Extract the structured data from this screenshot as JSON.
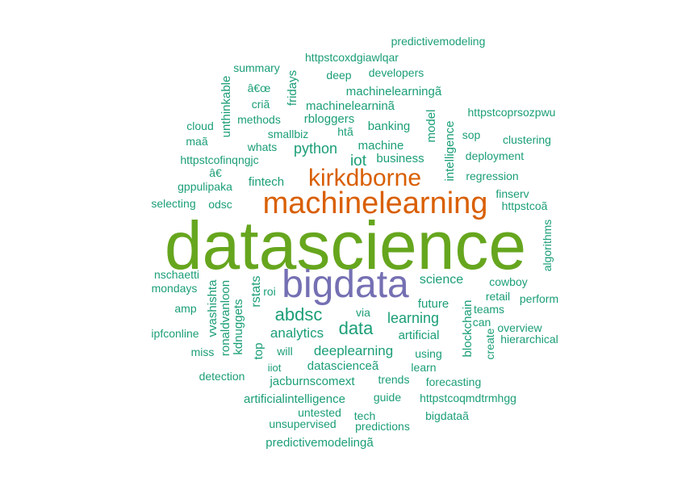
{
  "colors": {
    "teal": "#1b9e77",
    "orange": "#d95f02",
    "purple": "#7570b3",
    "green": "#66a61e"
  },
  "words": [
    {
      "text": "datascience",
      "color": "green"
    },
    {
      "text": "bigdata",
      "color": "purple"
    },
    {
      "text": "machinelearning",
      "color": "orange"
    },
    {
      "text": "kirkdborne",
      "color": "orange"
    },
    {
      "text": "data",
      "color": "teal"
    },
    {
      "text": "abdsc",
      "color": "teal"
    },
    {
      "text": "iot",
      "color": "teal"
    },
    {
      "text": "python",
      "color": "teal"
    },
    {
      "text": "learning",
      "color": "teal"
    },
    {
      "text": "analytics",
      "color": "teal"
    },
    {
      "text": "deeplearning",
      "color": "teal"
    },
    {
      "text": "science",
      "color": "teal"
    },
    {
      "text": "future",
      "color": "teal"
    },
    {
      "text": "business",
      "color": "teal"
    },
    {
      "text": "fintech",
      "color": "teal"
    },
    {
      "text": "machine",
      "color": "teal"
    },
    {
      "text": "banking",
      "color": "teal"
    },
    {
      "text": "datascienceã",
      "color": "teal"
    },
    {
      "text": "rbloggers",
      "color": "teal"
    },
    {
      "text": "artificial",
      "color": "teal"
    },
    {
      "text": "artificialintelligence",
      "color": "teal"
    },
    {
      "text": "machinelearninã",
      "color": "teal"
    },
    {
      "text": "machinelearningã",
      "color": "teal"
    },
    {
      "text": "jacburnscomext",
      "color": "teal"
    },
    {
      "text": "predictivemodelingã",
      "color": "teal"
    },
    {
      "text": "httpstcoqmdtrmhgg",
      "color": "teal"
    },
    {
      "text": "httpstcofinqngjc",
      "color": "teal"
    },
    {
      "text": "httpstcoxdgiawlqar",
      "color": "teal"
    },
    {
      "text": "deployment",
      "color": "teal"
    },
    {
      "text": "regression",
      "color": "teal"
    },
    {
      "text": "forecasting",
      "color": "teal"
    },
    {
      "text": "trends",
      "color": "teal"
    },
    {
      "text": "using",
      "color": "teal"
    },
    {
      "text": "learn",
      "color": "teal"
    },
    {
      "text": "will",
      "color": "teal"
    },
    {
      "text": "via",
      "color": "teal"
    },
    {
      "text": "smallbiz",
      "color": "teal"
    },
    {
      "text": "whats",
      "color": "teal"
    },
    {
      "text": "methods",
      "color": "teal"
    },
    {
      "text": "developers",
      "color": "teal"
    },
    {
      "text": "deep",
      "color": "teal"
    },
    {
      "text": "htã",
      "color": "teal"
    },
    {
      "text": "gppulipaka",
      "color": "teal"
    },
    {
      "text": "odsc",
      "color": "teal"
    },
    {
      "text": "selecting",
      "color": "teal"
    },
    {
      "text": "cowboy",
      "color": "teal"
    },
    {
      "text": "retail",
      "color": "teal"
    },
    {
      "text": "teams",
      "color": "teal"
    },
    {
      "text": "can",
      "color": "teal"
    },
    {
      "text": "sop",
      "color": "teal"
    },
    {
      "text": "guide",
      "color": "teal"
    },
    {
      "text": "tech",
      "color": "teal"
    },
    {
      "text": "predictions",
      "color": "teal"
    },
    {
      "text": "unsupervised",
      "color": "teal"
    },
    {
      "text": "untested",
      "color": "teal"
    },
    {
      "text": "detection",
      "color": "teal"
    },
    {
      "text": "mondays",
      "color": "teal"
    },
    {
      "text": "amp",
      "color": "teal"
    },
    {
      "text": "roi",
      "color": "teal"
    },
    {
      "text": "ipfconline",
      "color": "teal"
    },
    {
      "text": "miss",
      "color": "teal"
    },
    {
      "text": "iiot",
      "color": "teal"
    },
    {
      "text": "criã",
      "color": "teal"
    },
    {
      "text": "â€œ",
      "color": "teal"
    },
    {
      "text": "â€",
      "color": "teal"
    },
    {
      "text": "maã",
      "color": "teal"
    },
    {
      "text": "cloud",
      "color": "teal"
    },
    {
      "text": "summary",
      "color": "teal"
    },
    {
      "text": "predictivemodeling",
      "color": "teal"
    },
    {
      "text": "httpstcoprsozpwu",
      "color": "teal"
    },
    {
      "text": "clustering",
      "color": "teal"
    },
    {
      "text": "finserv",
      "color": "teal"
    },
    {
      "text": "httpstcoã",
      "color": "teal"
    },
    {
      "text": "nschaetti",
      "color": "teal"
    },
    {
      "text": "perform",
      "color": "teal"
    },
    {
      "text": "overview",
      "color": "teal"
    },
    {
      "text": "hierarchical",
      "color": "teal"
    },
    {
      "text": "bigdataã",
      "color": "teal"
    },
    {
      "text": "model",
      "color": "teal"
    },
    {
      "text": "intelligence",
      "color": "teal"
    },
    {
      "text": "blockchain",
      "color": "teal"
    },
    {
      "text": "create",
      "color": "teal"
    },
    {
      "text": "algorithms",
      "color": "teal"
    },
    {
      "text": "unthinkable",
      "color": "teal"
    },
    {
      "text": "fridays",
      "color": "teal"
    },
    {
      "text": "vvashishta",
      "color": "teal"
    },
    {
      "text": "ronaldvanloon",
      "color": "teal"
    },
    {
      "text": "kdnuggets",
      "color": "teal"
    },
    {
      "text": "rstats",
      "color": "teal"
    },
    {
      "text": "top",
      "color": "teal"
    }
  ]
}
